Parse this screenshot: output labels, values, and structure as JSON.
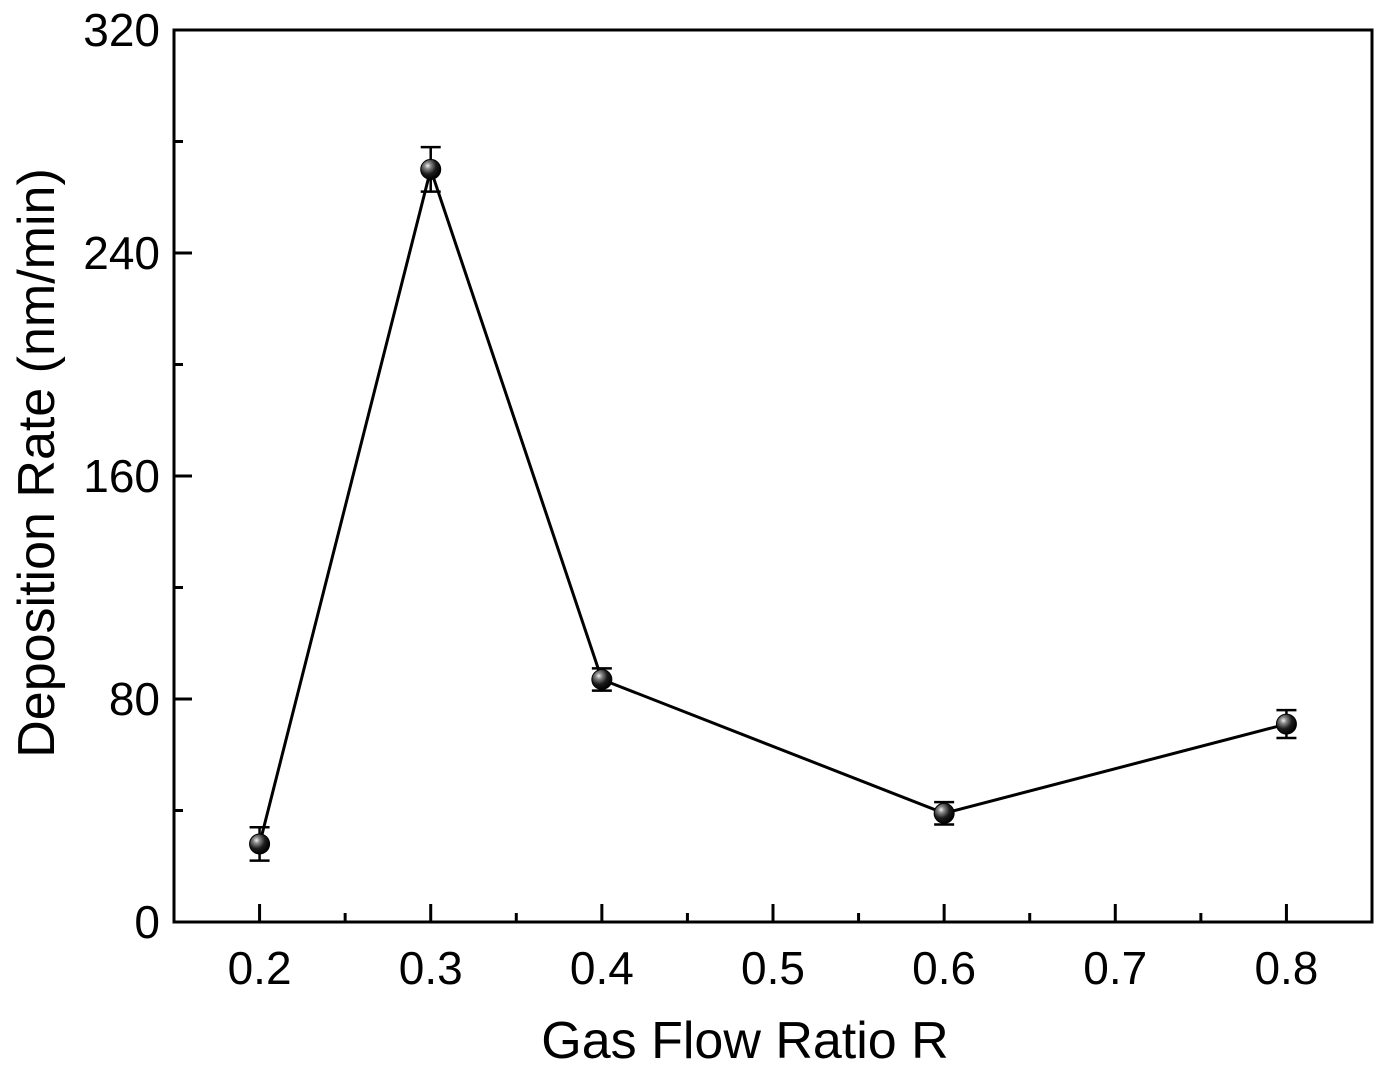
{
  "chart_data": {
    "type": "line",
    "title": "",
    "xlabel": "Gas Flow Ratio R",
    "ylabel": "Deposition Rate (nm/min)",
    "xlim": [
      0.15,
      0.85
    ],
    "ylim": [
      0,
      320
    ],
    "x_ticks": [
      0.2,
      0.3,
      0.4,
      0.5,
      0.6,
      0.7,
      0.8
    ],
    "x_tick_labels": [
      "0.2",
      "0.3",
      "0.4",
      "0.5",
      "0.6",
      "0.7",
      "0.8"
    ],
    "x_minor_ticks": [
      0.25,
      0.35,
      0.45,
      0.55,
      0.65,
      0.75
    ],
    "y_ticks": [
      0,
      80,
      160,
      240,
      320
    ],
    "y_tick_labels": [
      "0",
      "80",
      "160",
      "240",
      "320"
    ],
    "y_minor_ticks": [
      40,
      120,
      200,
      280
    ],
    "grid": false,
    "legend": "none",
    "line_color": "#000000",
    "marker": "sphere",
    "series": [
      {
        "x": [
          0.2,
          0.3,
          0.4,
          0.6,
          0.8
        ],
        "y": [
          28,
          270,
          87,
          39,
          71
        ],
        "error": [
          6,
          8,
          4,
          4,
          5
        ]
      }
    ]
  }
}
